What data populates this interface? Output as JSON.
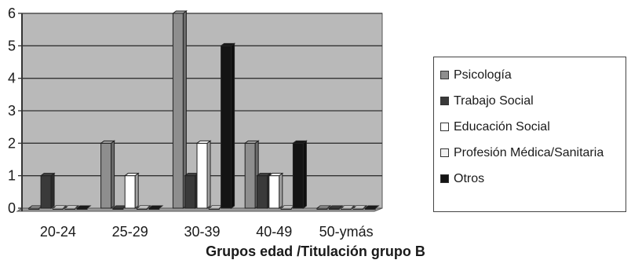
{
  "chart_data": {
    "type": "bar",
    "title": "",
    "xlabel": "Grupos edad /Titulación grupo B",
    "ylabel": "",
    "ylim": [
      0,
      6
    ],
    "yticks": [
      "0",
      "1",
      "2",
      "3",
      "4",
      "5",
      "6"
    ],
    "grid": true,
    "legend_position": "right",
    "categories": [
      "20-24",
      "25-29",
      "30-39",
      "40-49",
      "50-ymás"
    ],
    "series": [
      {
        "name": "Psicología",
        "values": [
          0,
          2,
          6,
          2,
          0
        ],
        "color": "#8e8e8e"
      },
      {
        "name": "Trabajo Social",
        "values": [
          1,
          0,
          1,
          1,
          0
        ],
        "color": "#3a3a3a"
      },
      {
        "name": "Educación Social",
        "values": [
          0,
          1,
          2,
          1,
          0
        ],
        "color": "#ffffff"
      },
      {
        "name": "Profesión Médica/Sanitaria",
        "values": [
          0,
          0,
          0,
          0,
          0
        ],
        "color": "#f2f2f2"
      },
      {
        "name": "Otros",
        "values": [
          0,
          0,
          5,
          2,
          0
        ],
        "color": "#141414"
      }
    ],
    "plot_background": "#b9b9b9"
  }
}
